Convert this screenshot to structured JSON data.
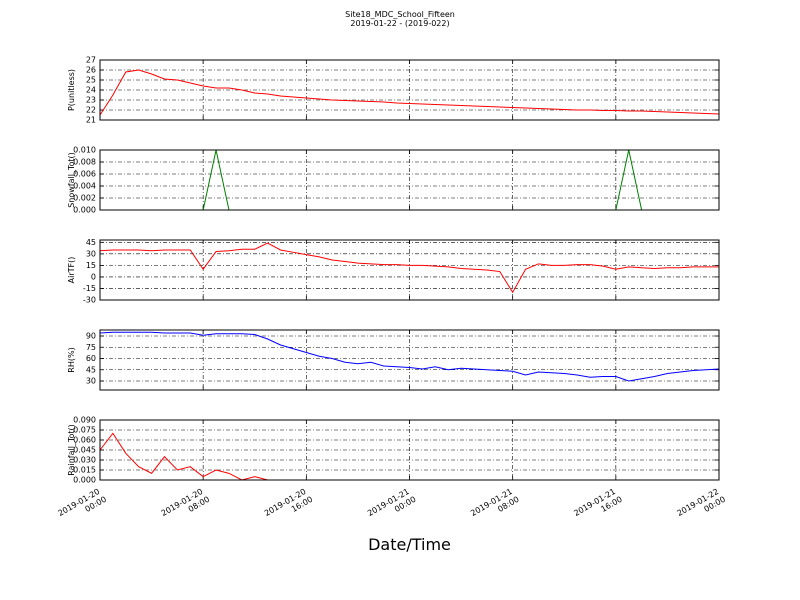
{
  "chart_data": [
    {
      "type": "line",
      "title": "Site18_MDC_School_Fifteen",
      "subtitle": "2019-01-22 - (2019-022)",
      "ylabel": "P(unitless)",
      "xlim": [
        "2019-01-20 00:00",
        "2019-01-22 00:00"
      ],
      "ylim": [
        21,
        27
      ],
      "yticks": [
        21,
        22,
        23,
        24,
        25,
        26,
        27
      ],
      "grid": true,
      "x": [
        "2019-01-20 00:00",
        "2019-01-20 01:00",
        "2019-01-20 02:00",
        "2019-01-20 03:00",
        "2019-01-20 04:00",
        "2019-01-20 05:00",
        "2019-01-20 06:00",
        "2019-01-20 07:00",
        "2019-01-20 08:00",
        "2019-01-20 09:00",
        "2019-01-20 10:00",
        "2019-01-20 11:00",
        "2019-01-20 12:00",
        "2019-01-20 13:00",
        "2019-01-20 14:00",
        "2019-01-20 15:00",
        "2019-01-20 16:00",
        "2019-01-20 17:00",
        "2019-01-20 18:00",
        "2019-01-20 19:00",
        "2019-01-20 20:00",
        "2019-01-20 21:00",
        "2019-01-20 22:00",
        "2019-01-20 23:00",
        "2019-01-21 00:00",
        "2019-01-21 01:00",
        "2019-01-21 02:00",
        "2019-01-21 03:00",
        "2019-01-21 04:00",
        "2019-01-21 05:00",
        "2019-01-21 06:00",
        "2019-01-21 07:00",
        "2019-01-21 08:00",
        "2019-01-21 09:00",
        "2019-01-21 10:00",
        "2019-01-21 11:00",
        "2019-01-21 12:00",
        "2019-01-21 13:00",
        "2019-01-21 14:00",
        "2019-01-21 15:00",
        "2019-01-21 16:00",
        "2019-01-21 17:00",
        "2019-01-21 18:00",
        "2019-01-21 19:00",
        "2019-01-21 20:00",
        "2019-01-21 21:00",
        "2019-01-21 22:00",
        "2019-01-21 23:00",
        "2019-01-22 00:00"
      ],
      "series": [
        {
          "color": "#ff0000",
          "values": [
            21.5,
            23.5,
            25.8,
            26,
            25.6,
            25.1,
            25.0,
            24.7,
            24.4,
            24.2,
            24.2,
            24.0,
            23.7,
            23.6,
            23.4,
            23.3,
            23.2,
            23.1,
            23.0,
            22.95,
            22.9,
            22.85,
            22.8,
            22.7,
            22.65,
            22.6,
            22.55,
            22.5,
            22.45,
            22.4,
            22.35,
            22.3,
            22.25,
            22.2,
            22.15,
            22.1,
            22.05,
            22.0,
            22.0,
            21.95,
            21.95,
            21.9,
            21.9,
            21.85,
            21.8,
            21.75,
            21.7,
            21.65,
            21.6
          ]
        }
      ]
    },
    {
      "type": "line",
      "ylabel": "Snowfall_Tot()",
      "xlim": [
        "2019-01-20 00:00",
        "2019-01-22 00:00"
      ],
      "ylim": [
        0,
        0.01
      ],
      "yticks": [
        {
          "value": 0,
          "label": "0.000"
        },
        {
          "value": 0.002,
          "label": "0.002"
        },
        {
          "value": 0.004,
          "label": "0.004"
        },
        {
          "value": 0.006,
          "label": "0.006"
        },
        {
          "value": 0.008,
          "label": "0.008"
        },
        {
          "value": 0.01,
          "label": "0.010"
        }
      ],
      "grid": true,
      "x": [
        "2019-01-20 00:00",
        "2019-01-20 01:00",
        "2019-01-20 02:00",
        "2019-01-20 03:00",
        "2019-01-20 04:00",
        "2019-01-20 05:00",
        "2019-01-20 06:00",
        "2019-01-20 07:00",
        "2019-01-20 08:00",
        "2019-01-20 09:00",
        "2019-01-20 10:00",
        "2019-01-20 11:00",
        "2019-01-20 12:00",
        "2019-01-20 13:00",
        "2019-01-20 14:00",
        "2019-01-20 15:00",
        "2019-01-20 16:00",
        "2019-01-20 17:00",
        "2019-01-20 18:00",
        "2019-01-20 19:00",
        "2019-01-20 20:00",
        "2019-01-20 21:00",
        "2019-01-20 22:00",
        "2019-01-20 23:00",
        "2019-01-21 00:00",
        "2019-01-21 01:00",
        "2019-01-21 02:00",
        "2019-01-21 03:00",
        "2019-01-21 04:00",
        "2019-01-21 05:00",
        "2019-01-21 06:00",
        "2019-01-21 07:00",
        "2019-01-21 08:00",
        "2019-01-21 09:00",
        "2019-01-21 10:00",
        "2019-01-21 11:00",
        "2019-01-21 12:00",
        "2019-01-21 13:00",
        "2019-01-21 14:00",
        "2019-01-21 15:00",
        "2019-01-21 16:00",
        "2019-01-21 17:00",
        "2019-01-21 18:00",
        "2019-01-21 19:00",
        "2019-01-21 20:00",
        "2019-01-21 21:00",
        "2019-01-21 22:00",
        "2019-01-21 23:00",
        "2019-01-22 00:00"
      ],
      "series": [
        {
          "color": "#008000",
          "values": [
            0,
            0,
            0,
            0,
            0,
            0,
            0,
            0,
            0,
            0.01,
            0,
            0,
            0,
            0,
            0,
            0,
            0,
            0,
            0,
            0,
            0,
            0,
            0,
            0,
            0,
            0,
            0,
            0,
            0,
            0,
            0,
            0,
            0,
            0,
            0,
            0,
            0,
            0,
            0,
            0,
            0,
            0.01,
            0,
            0,
            0,
            0,
            0,
            0,
            0
          ]
        }
      ]
    },
    {
      "type": "line",
      "ylabel": "AirTF()",
      "xlim": [
        "2019-01-20 00:00",
        "2019-01-22 00:00"
      ],
      "ylim": [
        -30,
        48
      ],
      "yticks": [
        -30,
        -15,
        0,
        15,
        30,
        45
      ],
      "grid": true,
      "x": [
        "2019-01-20 00:00",
        "2019-01-20 01:00",
        "2019-01-20 02:00",
        "2019-01-20 03:00",
        "2019-01-20 04:00",
        "2019-01-20 05:00",
        "2019-01-20 06:00",
        "2019-01-20 07:00",
        "2019-01-20 08:00",
        "2019-01-20 09:00",
        "2019-01-20 10:00",
        "2019-01-20 11:00",
        "2019-01-20 12:00",
        "2019-01-20 13:00",
        "2019-01-20 14:00",
        "2019-01-20 15:00",
        "2019-01-20 16:00",
        "2019-01-20 17:00",
        "2019-01-20 18:00",
        "2019-01-20 19:00",
        "2019-01-20 20:00",
        "2019-01-20 21:00",
        "2019-01-20 22:00",
        "2019-01-20 23:00",
        "2019-01-21 00:00",
        "2019-01-21 01:00",
        "2019-01-21 02:00",
        "2019-01-21 03:00",
        "2019-01-21 04:00",
        "2019-01-21 05:00",
        "2019-01-21 06:00",
        "2019-01-21 07:00",
        "2019-01-21 08:00",
        "2019-01-21 09:00",
        "2019-01-21 10:00",
        "2019-01-21 11:00",
        "2019-01-21 12:00",
        "2019-01-21 13:00",
        "2019-01-21 14:00",
        "2019-01-21 15:00",
        "2019-01-21 16:00",
        "2019-01-21 17:00",
        "2019-01-21 18:00",
        "2019-01-21 19:00",
        "2019-01-21 20:00",
        "2019-01-21 21:00",
        "2019-01-21 22:00",
        "2019-01-21 23:00",
        "2019-01-22 00:00"
      ],
      "series": [
        {
          "color": "#ff0000",
          "values": [
            34,
            35,
            35,
            35,
            34,
            35,
            35,
            35,
            10,
            33,
            34,
            36,
            36,
            44,
            35,
            32,
            29,
            26,
            22,
            20,
            18,
            17,
            16,
            16,
            15,
            15,
            14,
            13,
            11,
            10,
            9,
            7,
            -20,
            10,
            17,
            15,
            15,
            16,
            16,
            14,
            10,
            13,
            12,
            11,
            12,
            12,
            13,
            13,
            13
          ]
        }
      ]
    },
    {
      "type": "line",
      "ylabel": "RH(%)",
      "xlim": [
        "2019-01-20 00:00",
        "2019-01-22 00:00"
      ],
      "ylim": [
        18,
        98
      ],
      "yticks": [
        30,
        45,
        60,
        75,
        90
      ],
      "grid": true,
      "x": [
        "2019-01-20 00:00",
        "2019-01-20 01:00",
        "2019-01-20 02:00",
        "2019-01-20 03:00",
        "2019-01-20 04:00",
        "2019-01-20 05:00",
        "2019-01-20 06:00",
        "2019-01-20 07:00",
        "2019-01-20 08:00",
        "2019-01-20 09:00",
        "2019-01-20 10:00",
        "2019-01-20 11:00",
        "2019-01-20 12:00",
        "2019-01-20 13:00",
        "2019-01-20 14:00",
        "2019-01-20 15:00",
        "2019-01-20 16:00",
        "2019-01-20 17:00",
        "2019-01-20 18:00",
        "2019-01-20 19:00",
        "2019-01-20 20:00",
        "2019-01-20 21:00",
        "2019-01-20 22:00",
        "2019-01-20 23:00",
        "2019-01-21 00:00",
        "2019-01-21 01:00",
        "2019-01-21 02:00",
        "2019-01-21 03:00",
        "2019-01-21 04:00",
        "2019-01-21 05:00",
        "2019-01-21 06:00",
        "2019-01-21 07:00",
        "2019-01-21 08:00",
        "2019-01-21 09:00",
        "2019-01-21 10:00",
        "2019-01-21 11:00",
        "2019-01-21 12:00",
        "2019-01-21 13:00",
        "2019-01-21 14:00",
        "2019-01-21 15:00",
        "2019-01-21 16:00",
        "2019-01-21 17:00",
        "2019-01-21 18:00",
        "2019-01-21 19:00",
        "2019-01-21 20:00",
        "2019-01-21 21:00",
        "2019-01-21 22:00",
        "2019-01-21 23:00",
        "2019-01-22 00:00"
      ],
      "series": [
        {
          "color": "#0000ff",
          "values": [
            94,
            95,
            95,
            95,
            95,
            94,
            94,
            94,
            91,
            93,
            93,
            93,
            92,
            86,
            78,
            73,
            68,
            63,
            60,
            55,
            53,
            55,
            50,
            49,
            48,
            46,
            49,
            45,
            47,
            46,
            45,
            44,
            43,
            38,
            42,
            41,
            40,
            38,
            35,
            36,
            36,
            30,
            33,
            36,
            40,
            42,
            44,
            45,
            46
          ]
        }
      ]
    },
    {
      "type": "line",
      "ylabel": "Rainfall_Tot()",
      "xlabel": "Date/Time",
      "xlim": [
        "2019-01-20 00:00",
        "2019-01-22 00:00"
      ],
      "ylim": [
        0,
        0.09
      ],
      "yticks": [
        {
          "value": 0,
          "label": "0.000"
        },
        {
          "value": 0.015,
          "label": "0.015"
        },
        {
          "value": 0.03,
          "label": "0.030"
        },
        {
          "value": 0.045,
          "label": "0.045"
        },
        {
          "value": 0.06,
          "label": "0.060"
        },
        {
          "value": 0.075,
          "label": "0.075"
        },
        {
          "value": 0.09,
          "label": "0.090"
        }
      ],
      "grid": true,
      "xticks": [
        {
          "value": "2019-01-20 00:00",
          "label": [
            "2019-01-20",
            "00:00"
          ]
        },
        {
          "value": "2019-01-20 08:00",
          "label": [
            "2019-01-20",
            "08:00"
          ]
        },
        {
          "value": "2019-01-20 16:00",
          "label": [
            "2019-01-20",
            "16:00"
          ]
        },
        {
          "value": "2019-01-21 00:00",
          "label": [
            "2019-01-21",
            "00:00"
          ]
        },
        {
          "value": "2019-01-21 08:00",
          "label": [
            "2019-01-21",
            "08:00"
          ]
        },
        {
          "value": "2019-01-21 16:00",
          "label": [
            "2019-01-21",
            "16:00"
          ]
        },
        {
          "value": "2019-01-22 00:00",
          "label": [
            "2019-01-22",
            "00:00"
          ]
        }
      ],
      "x": [
        "2019-01-20 00:00",
        "2019-01-20 01:00",
        "2019-01-20 02:00",
        "2019-01-20 03:00",
        "2019-01-20 04:00",
        "2019-01-20 05:00",
        "2019-01-20 06:00",
        "2019-01-20 07:00",
        "2019-01-20 08:00",
        "2019-01-20 09:00",
        "2019-01-20 10:00",
        "2019-01-20 11:00",
        "2019-01-20 12:00",
        "2019-01-20 13:00",
        "2019-01-20 14:00",
        "2019-01-20 15:00",
        "2019-01-20 16:00",
        "2019-01-20 17:00",
        "2019-01-20 18:00",
        "2019-01-20 19:00",
        "2019-01-20 20:00",
        "2019-01-20 21:00",
        "2019-01-20 22:00",
        "2019-01-20 23:00",
        "2019-01-21 00:00",
        "2019-01-21 01:00",
        "2019-01-21 02:00",
        "2019-01-21 03:00",
        "2019-01-21 04:00",
        "2019-01-21 05:00",
        "2019-01-21 06:00",
        "2019-01-21 07:00",
        "2019-01-21 08:00",
        "2019-01-21 09:00",
        "2019-01-21 10:00",
        "2019-01-21 11:00",
        "2019-01-21 12:00",
        "2019-01-21 13:00",
        "2019-01-21 14:00",
        "2019-01-21 15:00",
        "2019-01-21 16:00",
        "2019-01-21 17:00",
        "2019-01-21 18:00",
        "2019-01-21 19:00",
        "2019-01-21 20:00",
        "2019-01-21 21:00",
        "2019-01-21 22:00",
        "2019-01-21 23:00",
        "2019-01-22 00:00"
      ],
      "series": [
        {
          "color": "#ff0000",
          "values": [
            0.045,
            0.07,
            0.04,
            0.02,
            0.01,
            0.035,
            0.015,
            0.02,
            0.005,
            0.015,
            0.01,
            0,
            0.005,
            0,
            0,
            0,
            0,
            0,
            0,
            0,
            0,
            0,
            0,
            0,
            0,
            0,
            0,
            0,
            0,
            0,
            0,
            0,
            0,
            0,
            0,
            0,
            0,
            0,
            0,
            0,
            0,
            0,
            0,
            0,
            0,
            0,
            0,
            0,
            0
          ]
        }
      ]
    }
  ]
}
